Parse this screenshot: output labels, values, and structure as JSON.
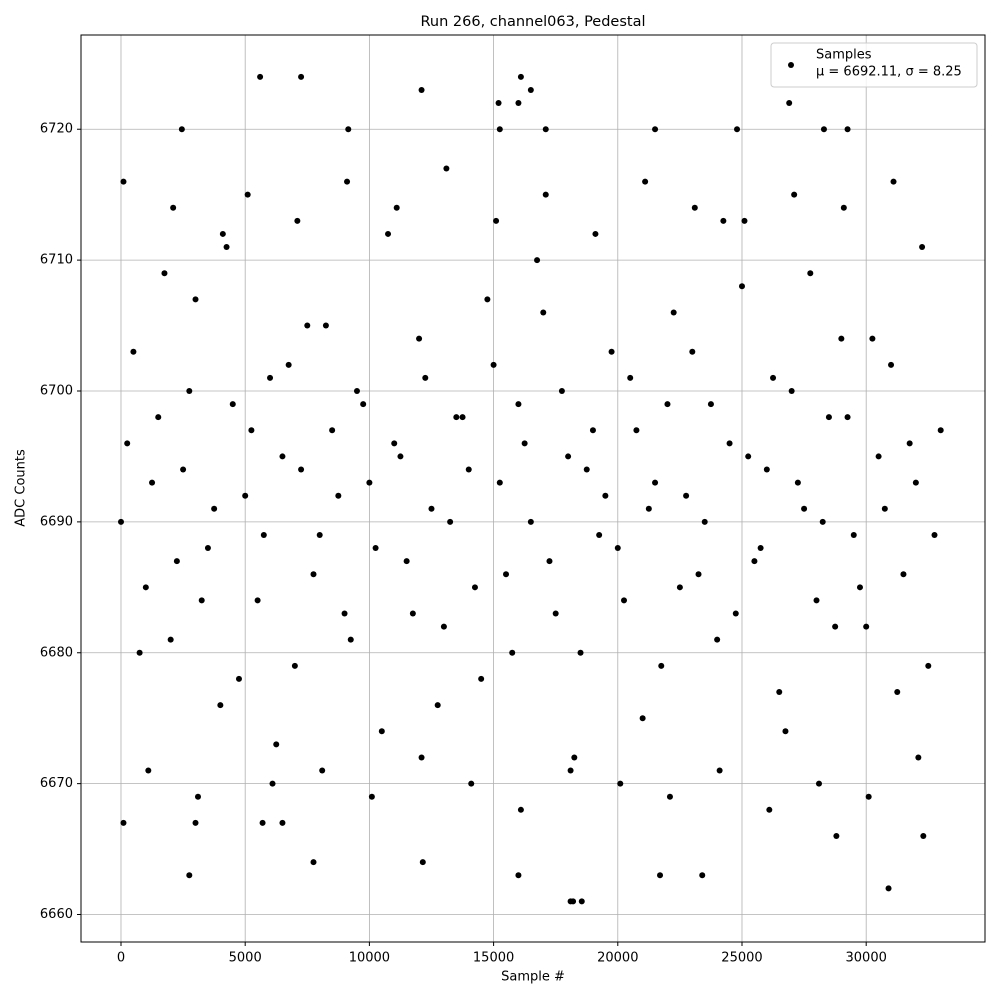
{
  "chart_data": {
    "type": "scatter",
    "title": "Run 266, channel063, Pedestal",
    "x_label": "Sample #",
    "y_label": "ADC Counts",
    "legend_text": "μ = 6692.11, σ = 8.25",
    "legend_position": "upper right",
    "grid": true,
    "xlim": [
      -1610,
      34783
    ],
    "ylim": [
      6657.9,
      6727.2
    ],
    "xticks": [
      0,
      5000,
      10000,
      15000,
      20000,
      25000,
      30000
    ],
    "yticks": [
      6660,
      6670,
      6680,
      6690,
      6700,
      6710,
      6720
    ],
    "x": [
      0,
      500,
      1000,
      1500,
      2000,
      2500,
      3000,
      3500,
      4000,
      4500,
      5000,
      5500,
      6000,
      6500,
      7000,
      7500,
      8000,
      8500,
      9000,
      9500,
      10000,
      10500,
      11000,
      11500,
      12000,
      12500,
      13000,
      13500,
      14000,
      14500,
      15000,
      15500,
      16000,
      16500,
      17000,
      17500,
      18000,
      18500,
      19000,
      19500,
      20000,
      20500,
      21000,
      21500,
      22000,
      22500,
      23000,
      23500,
      24000,
      24500,
      25000,
      25500,
      26000,
      26500,
      27000,
      27500,
      28000,
      28500,
      29000,
      29500,
      30000,
      30500,
      31000,
      31500,
      32000,
      32500,
      33000,
      250,
      750,
      1250,
      1750,
      2250,
      2750,
      3250,
      3750,
      4250,
      4750,
      5250,
      5750,
      6250,
      6750,
      7250,
      7750,
      8250,
      8750,
      9250,
      9750,
      10250,
      10750,
      11250,
      11750,
      12250,
      12750,
      13250,
      13750,
      14250,
      14750,
      15250,
      15750,
      16250,
      16750,
      17250,
      17750,
      18250,
      18750,
      19250,
      19750,
      20250,
      20750,
      21250,
      21750,
      22250,
      22750,
      23250,
      23750,
      24250,
      24750,
      25250,
      25750,
      26250,
      26750,
      27250,
      27750,
      28250,
      28750,
      29250,
      29750,
      30250,
      30750,
      31250,
      31750,
      32250,
      32750,
      100,
      1100,
      2100,
      3100,
      4100,
      5100,
      6100,
      7100,
      8100,
      9100,
      10100,
      11100,
      12100,
      13100,
      14100,
      15100,
      16100,
      17100,
      18100,
      19100,
      20100,
      21100,
      22100,
      23100,
      24100,
      25100,
      26100,
      27100,
      28100,
      29100,
      30100,
      31100,
      32100,
      5600,
      7250,
      16100,
      12100,
      16500,
      26900,
      15200,
      16000,
      2450,
      9150,
      15250,
      17100,
      21500,
      24800,
      28300,
      29250,
      2750,
      16000,
      21700,
      23400,
      30900,
      18100,
      18200,
      18550,
      7750,
      12150,
      28800,
      32300,
      100,
      3000,
      5700,
      6500
    ],
    "series": [
      {
        "name": "Samples",
        "color": "#000000",
        "values": [
          6690,
          6703,
          6685,
          6698,
          6681,
          6694,
          6707,
          6688,
          6676,
          6699,
          6692,
          6684,
          6701,
          6695,
          6679,
          6705,
          6689,
          6697,
          6683,
          6700,
          6693,
          6674,
          6696,
          6687,
          6704,
          6691,
          6682,
          6698,
          6694,
          6678,
          6702,
          6686,
          6699,
          6690,
          6706,
          6683,
          6695,
          6680,
          6697,
          6692,
          6688,
          6701,
          6675,
          6693,
          6699,
          6685,
          6703,
          6690,
          6681,
          6696,
          6708,
          6687,
          6694,
          6677,
          6700,
          6691,
          6684,
          6698,
          6704,
          6689,
          6682,
          6695,
          6702,
          6686,
          6693,
          6679,
          6697,
          6696,
          6680,
          6693,
          6709,
          6687,
          6700,
          6684,
          6691,
          6711,
          6678,
          6697,
          6689,
          6673,
          6702,
          6694,
          6686,
          6705,
          6692,
          6681,
          6699,
          6688,
          6712,
          6695,
          6683,
          6701,
          6676,
          6690,
          6698,
          6685,
          6707,
          6693,
          6680,
          6696,
          6710,
          6687,
          6700,
          6672,
          6694,
          6689,
          6703,
          6684,
          6697,
          6691,
          6679,
          6706,
          6692,
          6686,
          6699,
          6713,
          6683,
          6695,
          6688,
          6701,
          6674,
          6693,
          6709,
          6690,
          6682,
          6698,
          6685,
          6704,
          6691,
          6677,
          6696,
          6711,
          6689,
          6716,
          6671,
          6714,
          6669,
          6712,
          6715,
          6670,
          6713,
          6671,
          6716,
          6669,
          6714,
          6672,
          6717,
          6670,
          6713,
          6668,
          6715,
          6671,
          6712,
          6670,
          6716,
          6669,
          6714,
          6671,
          6713,
          6668,
          6715,
          6670,
          6714,
          6669,
          6716,
          6672,
          6724,
          6724,
          6724,
          6723,
          6723,
          6722,
          6722,
          6722,
          6720,
          6720,
          6720,
          6720,
          6720,
          6720,
          6720,
          6720,
          6663,
          6663,
          6663,
          6663,
          6662,
          6661,
          6661,
          6661,
          6664,
          6664,
          6666,
          6666,
          6667,
          6667,
          6667,
          6667
        ]
      }
    ]
  }
}
